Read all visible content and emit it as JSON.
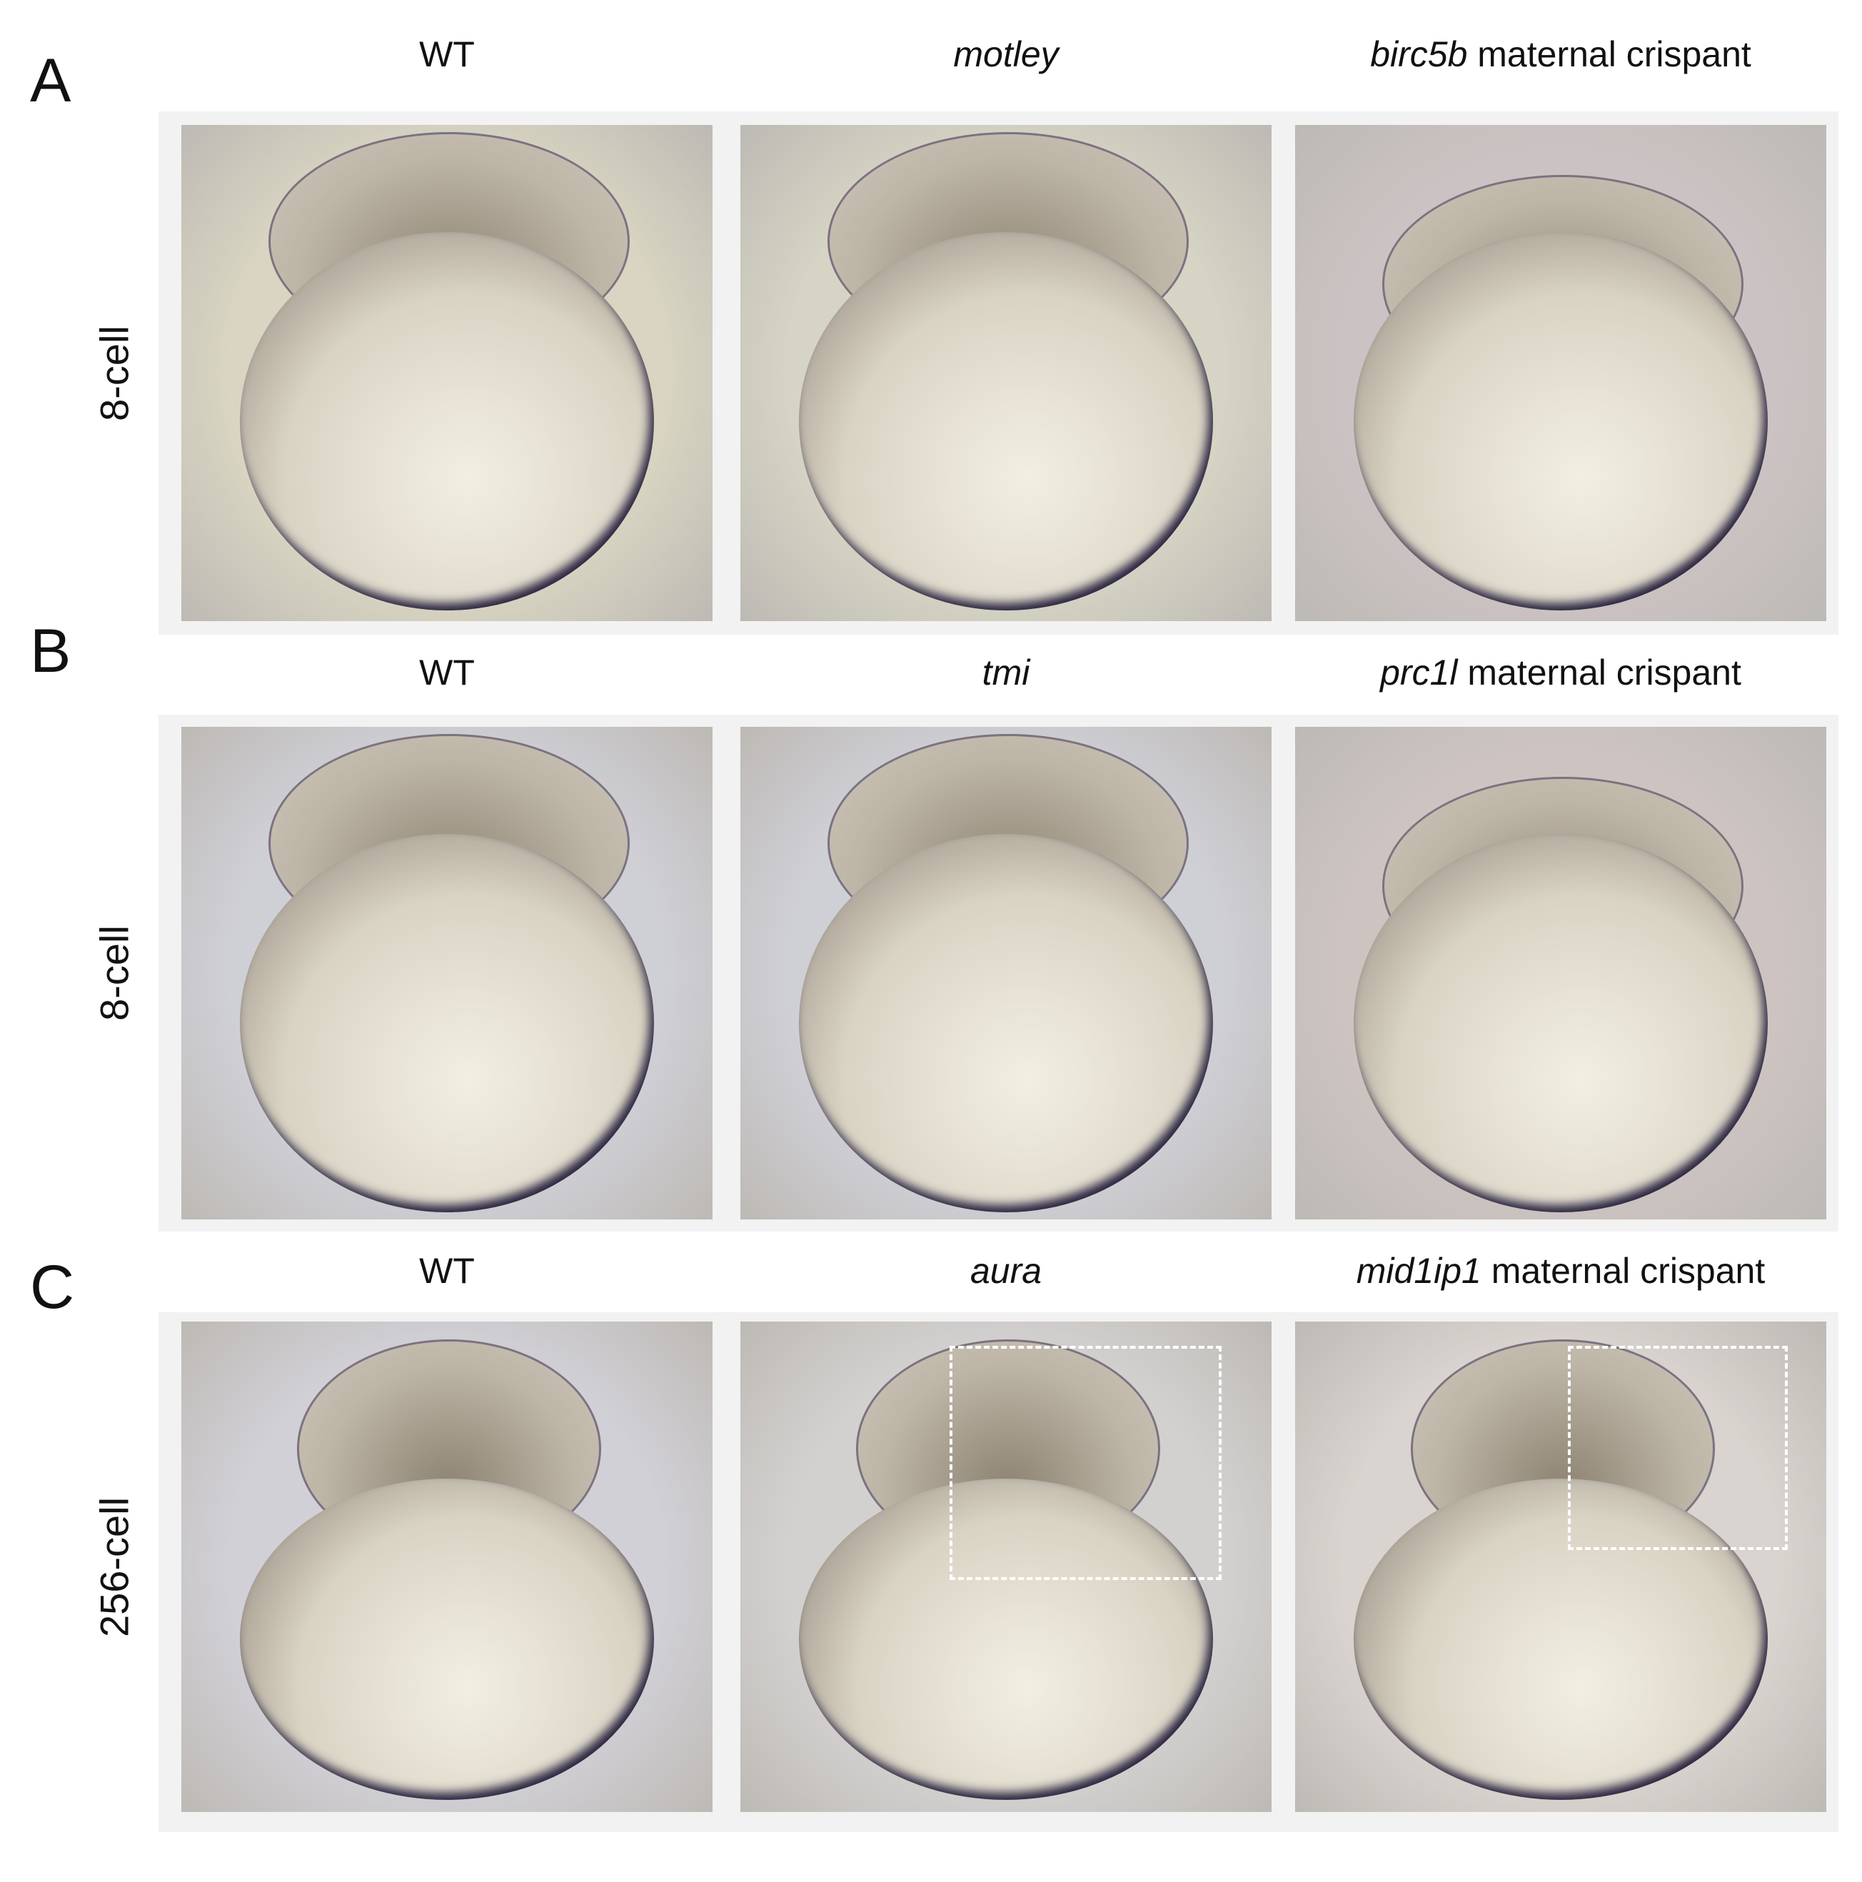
{
  "rows": [
    {
      "label": "A",
      "stage": "8-cell",
      "columns": [
        {
          "gene": "WT",
          "suffix": ""
        },
        {
          "gene": "motley",
          "suffix": ""
        },
        {
          "gene": "birc5b",
          "suffix": " maternal crispant"
        }
      ]
    },
    {
      "label": "B",
      "stage": "8-cell",
      "columns": [
        {
          "gene": "WT",
          "suffix": ""
        },
        {
          "gene": "tmi",
          "suffix": ""
        },
        {
          "gene": "prc1l",
          "suffix": " maternal crispant"
        }
      ]
    },
    {
      "label": "C",
      "stage": "256-cell",
      "columns": [
        {
          "gene": "WT",
          "suffix": ""
        },
        {
          "gene": "aura",
          "suffix": ""
        },
        {
          "gene": "mid1ip1",
          "suffix": " maternal crispant"
        }
      ]
    }
  ],
  "colors": {
    "panel_bg": "#f2f2f2",
    "dashed_box": "#ffffff"
  }
}
